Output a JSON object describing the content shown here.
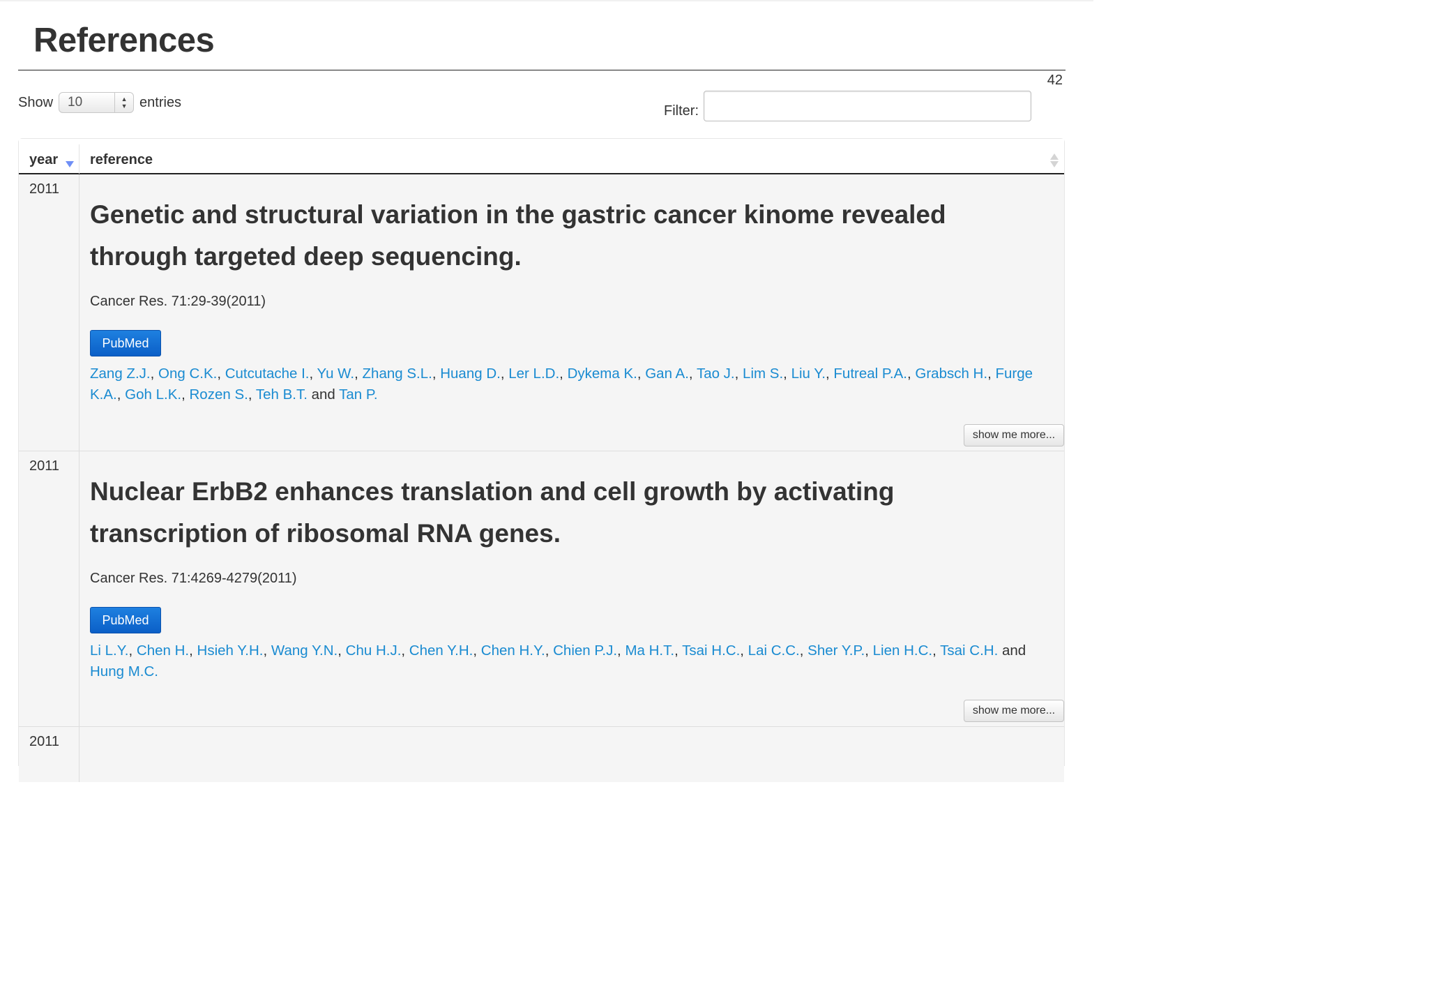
{
  "page": {
    "title": "References",
    "count": "42"
  },
  "controls": {
    "show_label": "Show",
    "entries_value": "10",
    "entries_label": "entries",
    "filter_label": "Filter:",
    "filter_value": ""
  },
  "table": {
    "headers": {
      "year": "year",
      "reference": "reference"
    },
    "rows": [
      {
        "year": "2011",
        "title": "Genetic and structural variation in the gastric cancer kinome revealed through targeted deep sequencing.",
        "citation": "Cancer Res. 71:29-39(2011)",
        "pubmed_label": "PubMed",
        "authors": [
          "Zang Z.J.",
          "Ong C.K.",
          "Cutcutache I.",
          "Yu W.",
          "Zhang S.L.",
          "Huang D.",
          "Ler L.D.",
          "Dykema K.",
          "Gan A.",
          "Tao J.",
          "Lim S.",
          "Liu Y.",
          "Futreal P.A.",
          "Grabsch H.",
          "Furge K.A.",
          "Goh L.K.",
          "Rozen S.",
          "Teh B.T.",
          "Tan P."
        ],
        "and_label": "and",
        "more_label": "show me more..."
      },
      {
        "year": "2011",
        "title": "Nuclear ErbB2 enhances translation and cell growth by activating transcription of ribosomal RNA genes.",
        "citation": "Cancer Res. 71:4269-4279(2011)",
        "pubmed_label": "PubMed",
        "authors": [
          "Li L.Y.",
          "Chen H.",
          "Hsieh Y.H.",
          "Wang Y.N.",
          "Chu H.J.",
          "Chen Y.H.",
          "Chen H.Y.",
          "Chien P.J.",
          "Ma H.T.",
          "Tsai H.C.",
          "Lai C.C.",
          "Sher Y.P.",
          "Lien H.C.",
          "Tsai C.H.",
          "Hung M.C."
        ],
        "and_label": "and",
        "more_label": "show me more..."
      },
      {
        "year": "2011"
      }
    ]
  },
  "colors": {
    "link": "#1a8bd1",
    "pubmed_button": "#0b5fc7",
    "sort_active": "#6f8ff6"
  }
}
